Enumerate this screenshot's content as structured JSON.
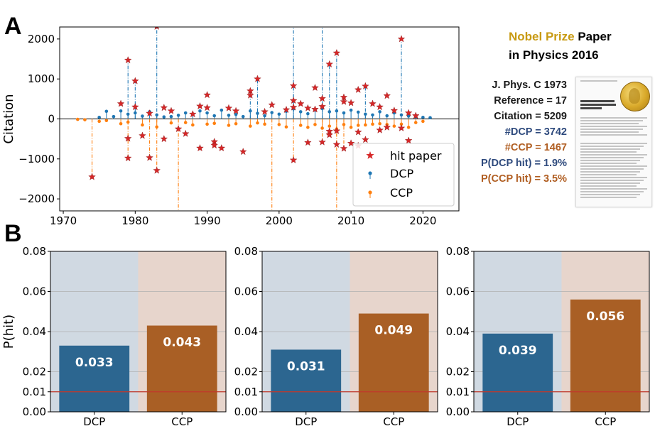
{
  "panel_a": {
    "letter": "A"
  },
  "panel_b": {
    "letter": "B"
  },
  "info": {
    "title_parts": [
      {
        "text": "Nobel Prize",
        "style": "gold"
      },
      {
        "text": " Paper",
        "style": "black"
      }
    ],
    "title_line2": "in Physics 2016",
    "lines": [
      {
        "text": "J. Phys. C 1973",
        "color": "#1a1a1a"
      },
      {
        "text": "Reference = 17",
        "color": "#1a1a1a"
      },
      {
        "text": "Citation = 5209",
        "color": "#1a1a1a"
      },
      {
        "text": "#DCP = 3742",
        "color": "#2e4a7d"
      },
      {
        "text": "#CCP = 1467",
        "color": "#b05e22"
      },
      {
        "text": "P(DCP hit) = 1.9%",
        "color": "#2e4a7d"
      },
      {
        "text": "P(CCP hit) = 3.5%",
        "color": "#b05e22"
      }
    ]
  },
  "colors": {
    "dcp": "#1f77b4",
    "ccp": "#ff7f0e",
    "hit": "#d62728",
    "bar_dcp": "#2c6690",
    "bar_ccp": "#a95f25",
    "bg_dcp": "#d0d9e2",
    "bg_ccp": "#e7d5cc",
    "ref_line": "#c0392b"
  },
  "chart_data": [
    {
      "type": "scatter",
      "title": "",
      "xlabel": "",
      "ylabel": "Citation",
      "xlim": [
        1969.5,
        2025
      ],
      "ylim": [
        -2300,
        2300
      ],
      "xticks": [
        1970,
        1980,
        1990,
        2000,
        2010,
        2020
      ],
      "yticks": [
        -2000,
        -1000,
        0,
        1000,
        2000
      ],
      "xtick_labels": [
        "1970",
        "1980",
        "1990",
        "2000",
        "2010",
        "2020"
      ],
      "ytick_labels": [
        "−2000",
        "−1000",
        "0",
        "1000",
        "2000"
      ],
      "legend": {
        "position": "lower-right",
        "entries": [
          "hit paper",
          "DCP",
          "CCP"
        ]
      },
      "series": [
        {
          "name": "DCP",
          "points": [
            [
              1975,
              40
            ],
            [
              1976,
              190
            ],
            [
              1977,
              60
            ],
            [
              1978,
              200
            ],
            [
              1979,
              120
            ],
            [
              1980,
              150
            ],
            [
              1981,
              70
            ],
            [
              1982,
              180
            ],
            [
              1983,
              100
            ],
            [
              1984,
              50
            ],
            [
              1985,
              60
            ],
            [
              1986,
              90
            ],
            [
              1987,
              150
            ],
            [
              1988,
              120
            ],
            [
              1989,
              200
            ],
            [
              1990,
              150
            ],
            [
              1991,
              80
            ],
            [
              1992,
              220
            ],
            [
              1993,
              90
            ],
            [
              1994,
              110
            ],
            [
              1995,
              60
            ],
            [
              1996,
              200
            ],
            [
              1997,
              140
            ],
            [
              1998,
              80
            ],
            [
              1999,
              160
            ],
            [
              2000,
              120
            ],
            [
              2001,
              190
            ],
            [
              2002,
              250
            ],
            [
              2003,
              180
            ],
            [
              2004,
              130
            ],
            [
              2005,
              220
            ],
            [
              2006,
              260
            ],
            [
              2007,
              180
            ],
            [
              2008,
              200
            ],
            [
              2009,
              150
            ],
            [
              2010,
              220
            ],
            [
              2011,
              170
            ],
            [
              2012,
              120
            ],
            [
              2013,
              100
            ],
            [
              2014,
              180
            ],
            [
              2015,
              80
            ],
            [
              2016,
              150
            ],
            [
              2017,
              100
            ],
            [
              2018,
              70
            ],
            [
              2019,
              50
            ],
            [
              2020,
              40
            ],
            [
              2021,
              30
            ]
          ]
        },
        {
          "name": "CCP",
          "points": [
            [
              1972,
              -10
            ],
            [
              1973,
              -20
            ],
            [
              1975,
              -60
            ],
            [
              1976,
              -40
            ],
            [
              1978,
              -120
            ],
            [
              1979,
              -80
            ],
            [
              1981,
              -150
            ],
            [
              1983,
              -200
            ],
            [
              1985,
              -100
            ],
            [
              1987,
              -90
            ],
            [
              1988,
              -150
            ],
            [
              1990,
              -130
            ],
            [
              1991,
              -110
            ],
            [
              1993,
              -160
            ],
            [
              1994,
              -120
            ],
            [
              1996,
              -180
            ],
            [
              1997,
              -100
            ],
            [
              1998,
              -130
            ],
            [
              2000,
              -140
            ],
            [
              2001,
              -200
            ],
            [
              2003,
              -160
            ],
            [
              2004,
              -210
            ],
            [
              2005,
              -140
            ],
            [
              2006,
              -230
            ],
            [
              2007,
              -180
            ],
            [
              2008,
              -250
            ],
            [
              2009,
              -140
            ],
            [
              2010,
              -210
            ],
            [
              2011,
              -160
            ],
            [
              2012,
              -150
            ],
            [
              2013,
              -130
            ],
            [
              2014,
              -120
            ],
            [
              2015,
              -140
            ],
            [
              2016,
              -180
            ],
            [
              2017,
              -130
            ],
            [
              2018,
              -210
            ],
            [
              2019,
              -90
            ],
            [
              2020,
              -60
            ]
          ]
        },
        {
          "name": "hit paper",
          "points": [
            [
              1974,
              -1450
            ],
            [
              1978,
              380
            ],
            [
              1979,
              1470
            ],
            [
              1979,
              -490
            ],
            [
              1979,
              -980
            ],
            [
              1980,
              950
            ],
            [
              1980,
              300
            ],
            [
              1981,
              -420
            ],
            [
              1982,
              -970
            ],
            [
              1982,
              140
            ],
            [
              1983,
              2310
            ],
            [
              1983,
              -1290
            ],
            [
              1984,
              280
            ],
            [
              1984,
              -500
            ],
            [
              1985,
              200
            ],
            [
              1986,
              -250
            ],
            [
              1987,
              -370
            ],
            [
              1988,
              120
            ],
            [
              1989,
              320
            ],
            [
              1989,
              -730
            ],
            [
              1990,
              600
            ],
            [
              1990,
              280
            ],
            [
              1991,
              -570
            ],
            [
              1991,
              -660
            ],
            [
              1992,
              -730
            ],
            [
              1993,
              270
            ],
            [
              1994,
              200
            ],
            [
              1995,
              -820
            ],
            [
              1996,
              700
            ],
            [
              1996,
              590
            ],
            [
              1997,
              1000
            ],
            [
              1998,
              180
            ],
            [
              1999,
              350
            ],
            [
              2001,
              230
            ],
            [
              2002,
              830
            ],
            [
              2002,
              460
            ],
            [
              2002,
              -1030
            ],
            [
              2002,
              290
            ],
            [
              2003,
              380
            ],
            [
              2004,
              -590
            ],
            [
              2004,
              270
            ],
            [
              2005,
              780
            ],
            [
              2005,
              240
            ],
            [
              2006,
              510
            ],
            [
              2006,
              310
            ],
            [
              2006,
              -580
            ],
            [
              2007,
              1370
            ],
            [
              2007,
              -400
            ],
            [
              2007,
              -310
            ],
            [
              2008,
              1650
            ],
            [
              2008,
              -640
            ],
            [
              2008,
              -300
            ],
            [
              2009,
              540
            ],
            [
              2009,
              -740
            ],
            [
              2009,
              430
            ],
            [
              2010,
              400
            ],
            [
              2010,
              -610
            ],
            [
              2011,
              730
            ],
            [
              2011,
              -670
            ],
            [
              2011,
              -330
            ],
            [
              2012,
              820
            ],
            [
              2012,
              -520
            ],
            [
              2013,
              380
            ],
            [
              2014,
              300
            ],
            [
              2014,
              -280
            ],
            [
              2015,
              580
            ],
            [
              2015,
              -210
            ],
            [
              2016,
              210
            ],
            [
              2017,
              2000
            ],
            [
              2017,
              -230
            ],
            [
              2018,
              150
            ],
            [
              2018,
              -540
            ],
            [
              2019,
              80
            ]
          ]
        }
      ],
      "stems_dcp": [
        [
          1979,
          1470
        ],
        [
          1980,
          950
        ],
        [
          1983,
          2310
        ],
        [
          1996,
          700
        ],
        [
          1997,
          1000
        ],
        [
          2002,
          2310
        ],
        [
          2002,
          830
        ],
        [
          2006,
          2310
        ],
        [
          2007,
          1370
        ],
        [
          2008,
          1650
        ],
        [
          2012,
          820
        ],
        [
          2017,
          2000
        ]
      ],
      "stems_ccp": [
        [
          1974,
          -1450
        ],
        [
          1979,
          -980
        ],
        [
          1982,
          -970
        ],
        [
          1983,
          -1290
        ],
        [
          1986,
          -2300
        ],
        [
          1999,
          -2300
        ],
        [
          2002,
          -1030
        ],
        [
          2006,
          -580
        ],
        [
          2008,
          -2300
        ],
        [
          2008,
          -640
        ],
        [
          2009,
          -740
        ]
      ]
    },
    {
      "type": "bar",
      "categories": [
        "DCP",
        "CCP"
      ],
      "values": [
        0.033,
        0.043
      ],
      "value_labels": [
        "0.033",
        "0.043"
      ],
      "ylabel": "P(hit)",
      "ylim": [
        0,
        0.08
      ],
      "yticks": [
        0,
        0.01,
        0.02,
        0.04,
        0.06,
        0.08
      ],
      "ytick_labels": [
        "0.00",
        "0.01",
        "0.02",
        "0.04",
        "0.06",
        "0.08"
      ],
      "reference_line": 0.01
    },
    {
      "type": "bar",
      "categories": [
        "DCP",
        "CCP"
      ],
      "values": [
        0.031,
        0.049
      ],
      "value_labels": [
        "0.031",
        "0.049"
      ],
      "ylabel": "",
      "ylim": [
        0,
        0.08
      ],
      "yticks": [
        0,
        0.01,
        0.02,
        0.04,
        0.06,
        0.08
      ],
      "ytick_labels": [
        "0.00",
        "0.01",
        "0.02",
        "0.04",
        "0.06",
        "0.08"
      ],
      "reference_line": 0.01
    },
    {
      "type": "bar",
      "categories": [
        "DCP",
        "CCP"
      ],
      "values": [
        0.039,
        0.056
      ],
      "value_labels": [
        "0.039",
        "0.056"
      ],
      "ylabel": "",
      "ylim": [
        0,
        0.08
      ],
      "yticks": [
        0,
        0.01,
        0.02,
        0.04,
        0.06,
        0.08
      ],
      "ytick_labels": [
        "0.00",
        "0.01",
        "0.02",
        "0.04",
        "0.06",
        "0.08"
      ],
      "reference_line": 0.01
    }
  ]
}
